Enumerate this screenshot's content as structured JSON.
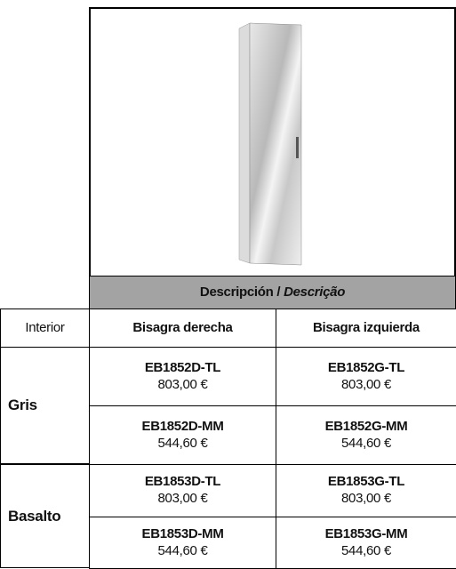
{
  "header": {
    "description": "Descripción / ",
    "description_pt": "Descrição"
  },
  "columns": [
    "Interior",
    "Bisagra derecha",
    "Bisagra izquierda"
  ],
  "groups": [
    {
      "name": "Gris",
      "rows": [
        [
          {
            "code": "EB1852D-TL",
            "price": "803,00 €"
          },
          {
            "code": "EB1852G-TL",
            "price": "803,00 €"
          }
        ],
        [
          {
            "code": "EB1852D-MM",
            "price": "544,60 €"
          },
          {
            "code": "EB1852G-MM",
            "price": "544,60 €"
          }
        ]
      ]
    },
    {
      "name": "Basalto",
      "rows": [
        [
          {
            "code": "EB1853D-TL",
            "price": "803,00 €"
          },
          {
            "code": "EB1853G-TL",
            "price": "803,00 €"
          }
        ],
        [
          {
            "code": "EB1853D-MM",
            "price": "544,60 €"
          },
          {
            "code": "EB1853G-MM",
            "price": "544,60 €"
          }
        ]
      ]
    }
  ]
}
